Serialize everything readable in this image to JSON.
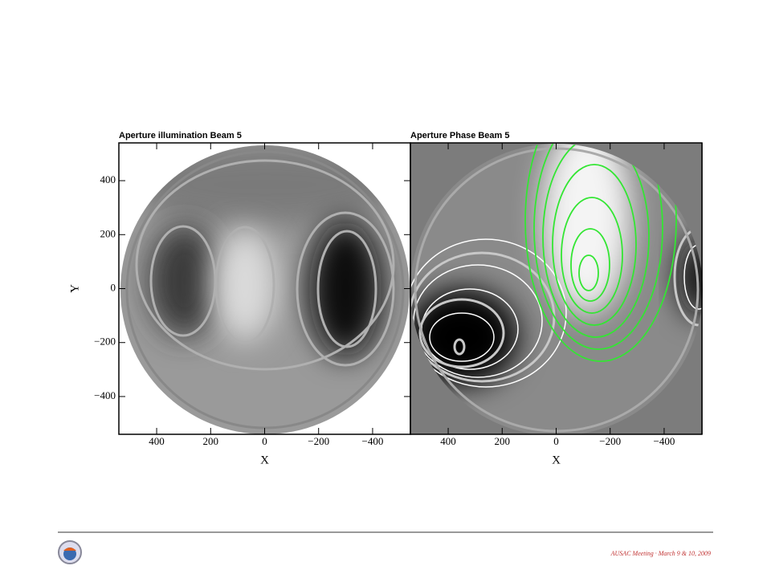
{
  "chart_data": [
    {
      "type": "image",
      "title": "Aperture illumination Beam 5",
      "x_label": "X",
      "y_label": "Y",
      "xlim": [
        540,
        -540
      ],
      "ylim": [
        -540,
        540
      ],
      "xticks": [
        400,
        200,
        0,
        {
          "value": -200,
          "label": "−200"
        },
        {
          "value": -400,
          "label": "−400"
        }
      ],
      "yticks": [
        {
          "value": -400,
          "label": "−400"
        },
        {
          "value": -200,
          "label": "−200"
        },
        0,
        200,
        400
      ]
    },
    {
      "type": "image",
      "title": "Aperture Phase Beam 5",
      "x_label": "X",
      "xlim": [
        540,
        -540
      ],
      "ylim": [
        -540,
        540
      ],
      "xticks": [
        400,
        200,
        0,
        {
          "value": -200,
          "label": "−200"
        },
        {
          "value": -400,
          "label": "−400"
        }
      ]
    }
  ],
  "slide": {
    "footer": "AUSAC Meeting · March 9 & 10, 2009"
  }
}
